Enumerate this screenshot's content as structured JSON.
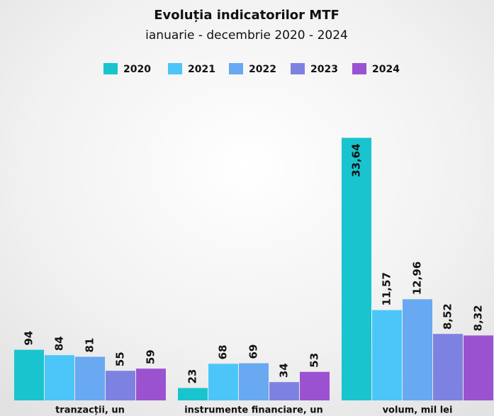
{
  "chart_data": {
    "type": "bar",
    "title": "Evoluția indicatorilor MTF",
    "subtitle": "ianuarie - decembrie 2020 - 2024",
    "categories": [
      "tranzacții, un",
      "instrumente financiare, un",
      "volum, mil lei"
    ],
    "ylims": [
      [
        0,
        500
      ],
      [
        0,
        500
      ],
      [
        0,
        34.5
      ]
    ],
    "series": [
      {
        "name": "2020",
        "color": "#19c4cf",
        "values": [
          94,
          23,
          33.64
        ],
        "value_labels": [
          "94",
          "23",
          "33,64"
        ]
      },
      {
        "name": "2021",
        "color": "#4cc6f8",
        "values": [
          84,
          68,
          11.57
        ],
        "value_labels": [
          "84",
          "68",
          "11,57"
        ]
      },
      {
        "name": "2022",
        "color": "#68a9f1",
        "values": [
          81,
          69,
          12.96
        ],
        "value_labels": [
          "81",
          "69",
          "12,96"
        ]
      },
      {
        "name": "2023",
        "color": "#7d82e2",
        "values": [
          55,
          34,
          8.52
        ],
        "value_labels": [
          "55",
          "34",
          "8,52"
        ]
      },
      {
        "name": "2024",
        "color": "#9b52d1",
        "values": [
          59,
          53,
          8.32
        ],
        "value_labels": [
          "59",
          "53",
          "8,32"
        ]
      }
    ]
  }
}
